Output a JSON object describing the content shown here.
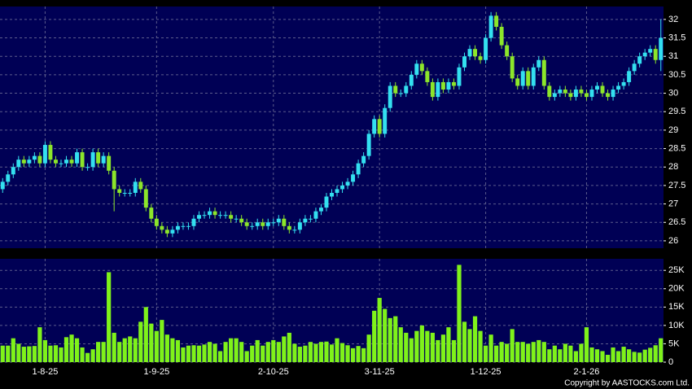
{
  "chart_data": [
    {
      "type": "candlestick",
      "xlim": [
        -0.5,
        124.5
      ],
      "ylim": [
        25.8,
        32.35
      ],
      "yticks": [
        26,
        26.5,
        27,
        27.5,
        28,
        28.5,
        29,
        29.5,
        30,
        30.5,
        31,
        31.5,
        32
      ],
      "grid": true,
      "up_color": "#33e0f0",
      "down_color": "#8ce62a",
      "open": [
        27.4,
        27.6,
        27.8,
        28.0,
        28.2,
        28.1,
        28.2,
        28.3,
        28.1,
        28.6,
        28.2,
        28.1,
        28.1,
        28.2,
        28.1,
        28.4,
        28.0,
        28.0,
        28.4,
        28.1,
        28.3,
        27.9,
        27.4,
        27.3,
        27.3,
        27.3,
        27.6,
        27.4,
        26.9,
        26.6,
        26.4,
        26.3,
        26.2,
        26.3,
        26.4,
        26.4,
        26.4,
        26.6,
        26.7,
        26.7,
        26.8,
        26.7,
        26.7,
        26.7,
        26.6,
        26.6,
        26.5,
        26.4,
        26.4,
        26.5,
        26.4,
        26.5,
        26.5,
        26.6,
        26.4,
        26.3,
        26.3,
        26.5,
        26.6,
        26.6,
        26.8,
        26.9,
        27.2,
        27.3,
        27.4,
        27.5,
        27.6,
        27.8,
        28.1,
        28.3,
        28.9,
        29.3,
        28.9,
        29.6,
        30.2,
        30.0,
        30.0,
        30.2,
        30.5,
        30.8,
        30.6,
        30.3,
        29.9,
        30.3,
        30.1,
        30.3,
        30.2,
        30.7,
        31.0,
        31.2,
        31.0,
        30.9,
        31.5,
        32.1,
        31.8,
        31.3,
        31.0,
        30.4,
        30.2,
        30.6,
        30.2,
        30.7,
        30.9,
        30.2,
        29.9,
        30.0,
        30.1,
        30.0,
        29.9,
        30.1,
        30.0,
        29.9,
        30.1,
        30.2,
        30.0,
        29.9,
        30.1,
        30.2,
        30.3,
        30.6,
        30.8,
        31.0,
        31.1,
        31.2,
        30.9
      ],
      "high": [
        27.7,
        27.9,
        28.1,
        28.3,
        28.3,
        28.3,
        28.4,
        28.4,
        28.7,
        28.7,
        28.3,
        28.2,
        28.3,
        28.3,
        28.5,
        28.5,
        28.1,
        28.5,
        28.5,
        28.4,
        28.4,
        28.0,
        27.5,
        27.4,
        27.4,
        27.7,
        27.7,
        27.5,
        27.0,
        26.7,
        26.5,
        26.4,
        26.4,
        26.5,
        26.5,
        26.5,
        26.7,
        26.8,
        26.8,
        26.9,
        26.9,
        26.8,
        26.8,
        26.8,
        26.7,
        26.7,
        26.6,
        26.5,
        26.6,
        26.6,
        26.6,
        26.6,
        26.7,
        26.7,
        26.5,
        26.4,
        26.6,
        26.7,
        26.7,
        26.9,
        27.0,
        27.3,
        27.4,
        27.5,
        27.6,
        27.7,
        27.9,
        28.2,
        28.4,
        29.0,
        29.4,
        29.4,
        29.7,
        30.3,
        30.3,
        30.1,
        30.3,
        30.6,
        30.9,
        30.9,
        30.7,
        30.4,
        30.4,
        30.4,
        30.4,
        30.4,
        30.8,
        31.1,
        31.3,
        31.3,
        31.1,
        31.6,
        32.2,
        32.2,
        31.9,
        31.4,
        31.1,
        30.5,
        30.7,
        30.7,
        30.8,
        31.0,
        31.0,
        30.3,
        30.1,
        30.2,
        30.2,
        30.1,
        30.2,
        30.2,
        30.1,
        30.2,
        30.3,
        30.3,
        30.1,
        30.2,
        30.3,
        30.4,
        30.7,
        30.9,
        31.1,
        31.2,
        31.3,
        31.3,
        32.0
      ],
      "low": [
        27.3,
        27.5,
        27.7,
        27.9,
        28.0,
        28.0,
        28.1,
        28.0,
        28.0,
        28.1,
        28.0,
        28.0,
        28.0,
        28.0,
        28.0,
        27.9,
        27.9,
        27.9,
        28.0,
        28.0,
        27.8,
        26.8,
        27.2,
        27.2,
        27.2,
        27.2,
        27.3,
        26.8,
        26.5,
        26.3,
        26.2,
        26.1,
        26.1,
        26.2,
        26.3,
        26.3,
        26.3,
        26.5,
        26.6,
        26.6,
        26.6,
        26.6,
        26.6,
        26.5,
        26.5,
        26.4,
        26.3,
        26.3,
        26.3,
        26.3,
        26.3,
        26.4,
        26.4,
        26.3,
        26.2,
        26.2,
        26.2,
        26.4,
        26.5,
        26.5,
        26.7,
        26.8,
        27.1,
        27.2,
        27.3,
        27.4,
        27.5,
        27.7,
        28.0,
        28.2,
        28.8,
        28.8,
        28.8,
        29.5,
        29.9,
        29.9,
        29.9,
        30.1,
        30.4,
        30.5,
        30.2,
        29.8,
        29.8,
        30.0,
        30.0,
        30.1,
        30.1,
        30.6,
        30.9,
        30.9,
        30.8,
        30.8,
        31.4,
        31.7,
        31.2,
        30.9,
        30.3,
        30.1,
        30.1,
        30.1,
        30.1,
        30.6,
        30.1,
        29.8,
        29.8,
        29.9,
        29.9,
        29.8,
        29.8,
        29.9,
        29.8,
        29.8,
        30.0,
        29.9,
        29.8,
        29.8,
        30.0,
        30.1,
        30.2,
        30.5,
        30.7,
        30.9,
        31.0,
        30.8,
        30.6
      ],
      "close": [
        27.6,
        27.8,
        28.0,
        28.2,
        28.1,
        28.2,
        28.3,
        28.1,
        28.6,
        28.2,
        28.1,
        28.1,
        28.2,
        28.1,
        28.4,
        28.0,
        28.0,
        28.4,
        28.1,
        28.3,
        27.9,
        27.4,
        27.3,
        27.3,
        27.3,
        27.6,
        27.4,
        26.9,
        26.6,
        26.4,
        26.3,
        26.2,
        26.3,
        26.4,
        26.4,
        26.4,
        26.6,
        26.7,
        26.7,
        26.8,
        26.7,
        26.7,
        26.7,
        26.6,
        26.6,
        26.5,
        26.4,
        26.4,
        26.5,
        26.4,
        26.5,
        26.5,
        26.6,
        26.4,
        26.3,
        26.3,
        26.5,
        26.6,
        26.6,
        26.8,
        26.9,
        27.2,
        27.3,
        27.4,
        27.5,
        27.6,
        27.8,
        28.1,
        28.3,
        28.9,
        29.3,
        28.9,
        29.6,
        30.2,
        30.0,
        30.0,
        30.2,
        30.5,
        30.8,
        30.6,
        30.3,
        29.9,
        30.3,
        30.1,
        30.3,
        30.2,
        30.7,
        31.0,
        31.2,
        31.0,
        30.9,
        31.5,
        32.1,
        31.8,
        31.3,
        31.0,
        30.4,
        30.2,
        30.6,
        30.2,
        30.7,
        30.9,
        30.2,
        29.9,
        30.0,
        30.1,
        30.0,
        29.9,
        30.1,
        30.0,
        29.9,
        30.1,
        30.2,
        30.0,
        29.9,
        30.1,
        30.2,
        30.3,
        30.6,
        30.8,
        31.0,
        31.1,
        31.2,
        30.9,
        31.5
      ]
    },
    {
      "type": "bar",
      "xlim": [
        -0.5,
        124.5
      ],
      "xticks": [
        {
          "value": 8,
          "label": "1-8-25"
        },
        {
          "value": 29,
          "label": "1-9-25"
        },
        {
          "value": 51,
          "label": "2-10-25"
        },
        {
          "value": 71,
          "label": "3-11-25"
        },
        {
          "value": 91,
          "label": "1-12-25"
        },
        {
          "value": 110,
          "label": "2-1-26"
        }
      ],
      "ylim": [
        0,
        28150
      ],
      "yticks": [
        0,
        {
          "value": 5000,
          "label": "5K"
        },
        {
          "value": 10000,
          "label": "10K"
        },
        {
          "value": 15000,
          "label": "15K"
        },
        {
          "value": 20000,
          "label": "20K"
        },
        {
          "value": 25000,
          "label": "25K"
        }
      ],
      "grid": true,
      "color": "#7ff21a",
      "values": [
        4500,
        4500,
        6500,
        5000,
        4200,
        4300,
        4400,
        9500,
        6000,
        4500,
        4600,
        4000,
        6800,
        7500,
        6500,
        4000,
        2500,
        3500,
        5500,
        5500,
        24500,
        8000,
        5500,
        6500,
        7000,
        6500,
        11000,
        15000,
        10500,
        8500,
        11500,
        7500,
        6500,
        6000,
        4000,
        4500,
        4600,
        4500,
        4800,
        5500,
        5000,
        3000,
        5500,
        6500,
        6500,
        5500,
        3000,
        4500,
        6000,
        4500,
        5500,
        6000,
        5500,
        7000,
        8000,
        5000,
        4200,
        4500,
        5500,
        5000,
        5500,
        5600,
        4800,
        6500,
        5200,
        4600,
        3800,
        4400,
        3800,
        7500,
        14000,
        17500,
        14500,
        12000,
        12500,
        9500,
        8000,
        6500,
        8500,
        10000,
        8500,
        8000,
        6000,
        7500,
        9500,
        6000,
        26500,
        11000,
        9000,
        12500,
        8500,
        4500,
        7500,
        4500,
        5500,
        5000,
        9000,
        5500,
        5500,
        5000,
        5500,
        6000,
        5500,
        3500,
        4500,
        3500,
        5000,
        4500,
        3000,
        5000,
        9500,
        4000,
        3500,
        3000,
        2000,
        4000,
        3000,
        4200,
        3500,
        2800,
        2600,
        3400,
        3900,
        4600,
        6500
      ]
    }
  ],
  "copyright": "Copyright by AASTOCKS.com Ltd."
}
